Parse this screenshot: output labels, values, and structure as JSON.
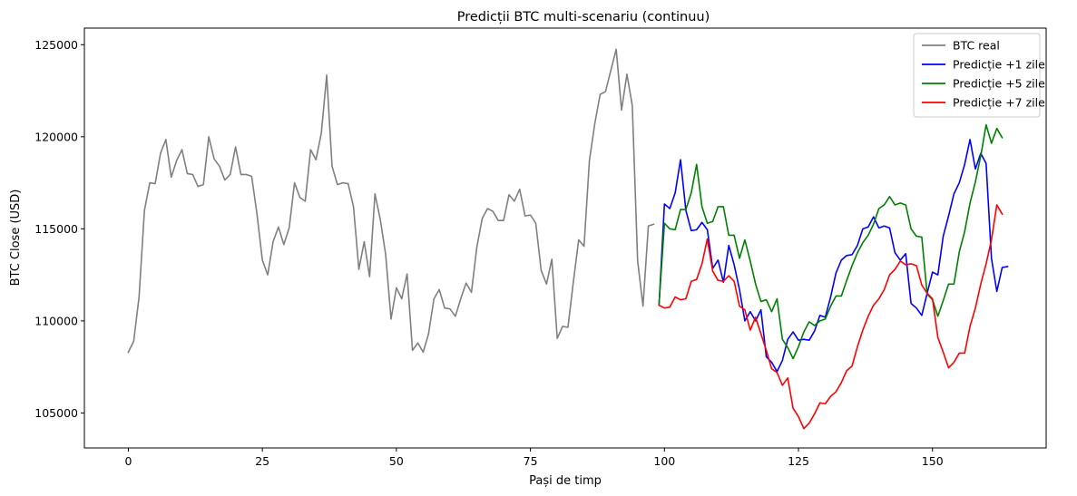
{
  "chart_data": {
    "type": "line",
    "title": "Predicții BTC multi-scenariu (continuu)",
    "xlabel": "Pași de timp",
    "ylabel": "BTC Close (USD)",
    "xlim": [
      -8.2,
      171.2
    ],
    "ylim": [
      103100,
      125900
    ],
    "xticks": [
      0,
      25,
      50,
      75,
      100,
      125,
      150
    ],
    "yticks": [
      105000,
      110000,
      115000,
      120000,
      125000
    ],
    "grid": false,
    "legend_position": "top-right",
    "series": [
      {
        "name": "BTC real",
        "color": "#808080",
        "x_start": 0,
        "values": [
          108300,
          108900,
          111300,
          116000,
          117500,
          117450,
          119100,
          119850,
          117800,
          118700,
          119300,
          118000,
          117950,
          117300,
          117400,
          120000,
          118800,
          118400,
          117650,
          117950,
          119450,
          117950,
          117950,
          117850,
          115800,
          113300,
          112500,
          114300,
          115100,
          114150,
          115050,
          117500,
          116700,
          116500,
          119300,
          118750,
          120200,
          123350,
          118400,
          117400,
          117500,
          117450,
          116200,
          112800,
          114300,
          112400,
          116900,
          115500,
          113600,
          110100,
          111800,
          111200,
          112550,
          108400,
          108800,
          108300,
          109300,
          111200,
          111700,
          110700,
          110650,
          110250,
          111200,
          112050,
          111550,
          114000,
          115550,
          116100,
          115950,
          115450,
          115450,
          116850,
          116500,
          117150,
          115700,
          115750,
          115300,
          112750,
          112000,
          113350,
          109050,
          109700,
          109650,
          112100,
          114400,
          114050,
          118700,
          120700,
          122300,
          122450,
          123600,
          124750,
          121450,
          123400,
          121700,
          113250,
          110800,
          115150,
          115250
        ]
      },
      {
        "name": "Predicție +1 zile",
        "color": "#0000ff",
        "x_start": 99,
        "values": [
          110900,
          116350,
          116100,
          116950,
          118750,
          116000,
          114900,
          114950,
          115350,
          114950,
          112850,
          113300,
          112100,
          114100,
          113050,
          111700,
          110000,
          110500,
          110000,
          110600,
          108050,
          107750,
          107250,
          107850,
          109000,
          109400,
          108950,
          109000,
          108950,
          109450,
          110300,
          110200,
          111300,
          112600,
          113300,
          113550,
          113600,
          114100,
          115000,
          115100,
          115650,
          115050,
          115150,
          115050,
          113700,
          113300,
          113650,
          110950,
          110700,
          110300,
          111500,
          112650,
          112500,
          114600,
          115700,
          116900,
          117500,
          118500,
          119850,
          118250,
          119100,
          118550,
          113400,
          111600,
          112900,
          112950
        ]
      },
      {
        "name": "Predicție +5 zile",
        "color": "#008000",
        "x_start": 99,
        "values": [
          110950,
          115300,
          115000,
          114950,
          116050,
          116050,
          116950,
          118500,
          116200,
          115300,
          115400,
          116200,
          116200,
          114650,
          114650,
          113400,
          114400,
          113250,
          112000,
          111050,
          111150,
          110500,
          111200,
          109000,
          108550,
          107950,
          108600,
          109400,
          109950,
          109750,
          110000,
          110100,
          110800,
          111350,
          111350,
          112200,
          113000,
          113700,
          114250,
          114650,
          115250,
          116100,
          116300,
          116750,
          116300,
          116400,
          116300,
          115000,
          114600,
          114550,
          111450,
          111150,
          110250,
          111100,
          112000,
          112000,
          113750,
          114850,
          116400,
          117550,
          118950,
          120650,
          119650,
          120450,
          119950
        ]
      },
      {
        "name": "Predicție +7 zile",
        "color": "#ff0000",
        "x_start": 99,
        "values": [
          110850,
          110700,
          110750,
          111300,
          111150,
          111200,
          112150,
          112250,
          113100,
          114450,
          112700,
          112200,
          112150,
          112450,
          112150,
          110800,
          110600,
          109500,
          110200,
          109300,
          108400,
          107400,
          107200,
          106500,
          106900,
          105250,
          104800,
          104150,
          104450,
          104950,
          105550,
          105500,
          105900,
          106150,
          106650,
          107300,
          107550,
          108600,
          109500,
          110250,
          110850,
          111200,
          111700,
          112500,
          112800,
          113250,
          113050,
          113100,
          113000,
          111950,
          111500,
          111200,
          109100,
          108300,
          107450,
          107750,
          108250,
          108250,
          109700,
          110700,
          112000,
          113100,
          114400,
          116300,
          115800
        ]
      }
    ]
  }
}
